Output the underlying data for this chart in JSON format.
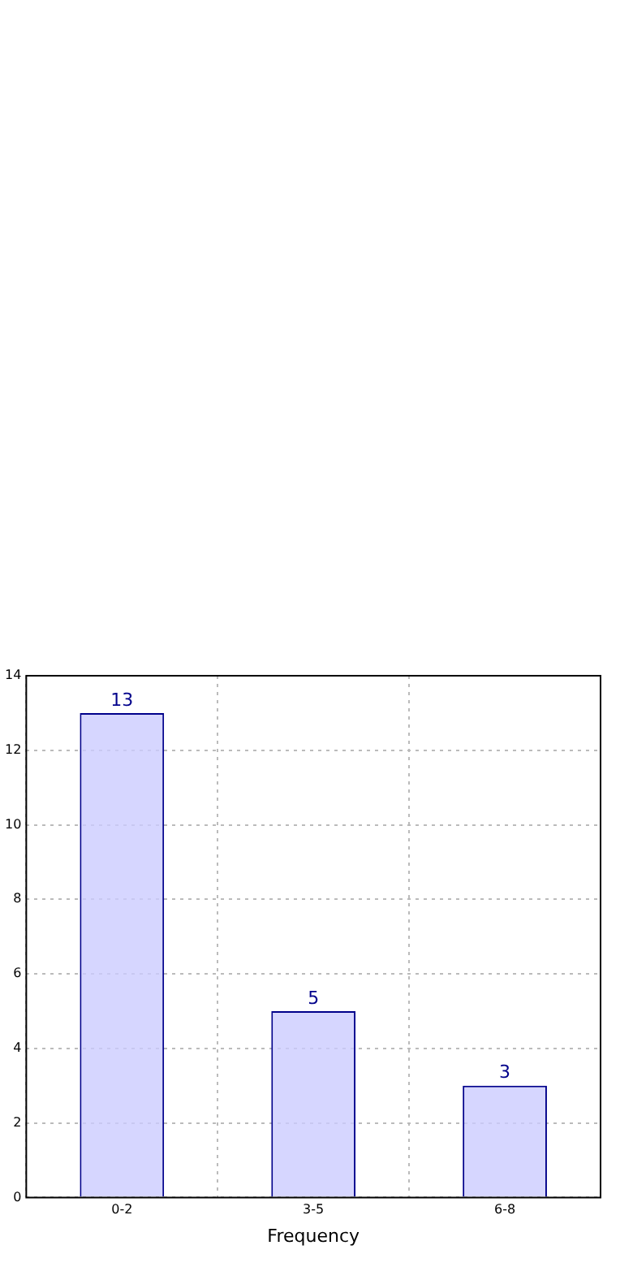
{
  "chart_data": {
    "type": "bar",
    "xlabel": "Frequency",
    "categories": [
      "0-2",
      "3-5",
      "6-8"
    ],
    "values": [
      13,
      5,
      3
    ],
    "color": "#ccccff",
    "ylim": [
      0,
      14
    ],
    "yticks": [
      0,
      2,
      4,
      6,
      8,
      10,
      12,
      14
    ],
    "grid": true,
    "data_labels": true
  }
}
